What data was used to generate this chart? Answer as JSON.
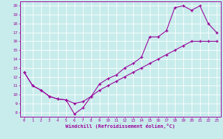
{
  "xlabel": "Windchill (Refroidissement éolien,°C)",
  "bg_color": "#c8ecec",
  "line_color": "#990099",
  "grid_color": "#ffffff",
  "xlim": [
    -0.5,
    23.5
  ],
  "ylim": [
    7.5,
    20.5
  ],
  "xticks": [
    0,
    1,
    2,
    3,
    4,
    5,
    6,
    7,
    8,
    9,
    10,
    11,
    12,
    13,
    14,
    15,
    16,
    17,
    18,
    19,
    20,
    21,
    22,
    23
  ],
  "yticks": [
    8,
    9,
    10,
    11,
    12,
    13,
    14,
    15,
    16,
    17,
    18,
    19,
    20
  ],
  "line1_x": [
    0,
    1,
    2,
    3,
    4,
    5,
    6,
    7,
    8,
    9,
    10,
    11,
    12,
    13,
    14,
    15,
    16,
    17,
    18,
    19,
    20,
    21,
    22,
    23
  ],
  "line1_y": [
    12.5,
    11.0,
    10.5,
    9.8,
    9.5,
    9.4,
    7.8,
    8.5,
    9.8,
    11.2,
    11.8,
    12.2,
    13.0,
    13.5,
    14.2,
    16.5,
    16.5,
    17.2,
    19.8,
    20.0,
    19.5,
    20.0,
    18.0,
    17.0
  ],
  "line2_x": [
    0,
    1,
    2,
    3,
    4,
    5,
    6,
    7,
    8,
    9,
    10,
    11,
    12,
    13,
    14,
    15,
    16,
    17,
    18,
    19,
    20,
    21,
    22,
    23
  ],
  "line2_y": [
    12.5,
    11.0,
    10.5,
    9.8,
    9.5,
    9.4,
    9.0,
    9.2,
    9.8,
    10.5,
    11.0,
    11.5,
    12.0,
    12.5,
    13.0,
    13.5,
    14.0,
    14.5,
    15.0,
    15.5,
    16.0,
    16.0,
    16.0,
    16.0
  ]
}
